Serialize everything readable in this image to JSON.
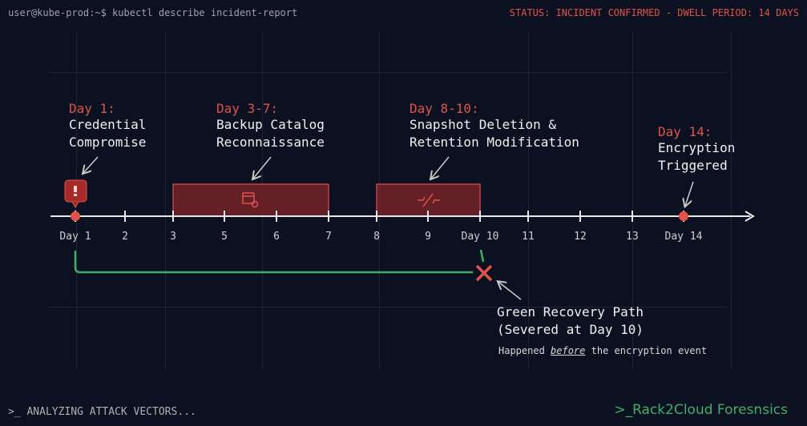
{
  "header": {
    "command": "user@kube-prod:~$ kubectl describe incident-report",
    "status": "STATUS: INCIDENT CONFIRMED - DWELL PERIOD: 14 DAYS"
  },
  "events": [
    {
      "day": "Day 1:",
      "text1": "Credential",
      "text2": "Compromise"
    },
    {
      "day": "Day 3-7:",
      "text1": "Backup Catalog",
      "text2": "Reconnaissance"
    },
    {
      "day": "Day 8-10:",
      "text1": "Snapshot Deletion &",
      "text2": "Retention Modification"
    },
    {
      "day": "Day 14:",
      "text1": "Encryption",
      "text2": "Triggered"
    }
  ],
  "ticks": [
    "Day 1",
    "2",
    "3",
    "5",
    "6",
    "7",
    "8",
    "9",
    "Day 10",
    "11",
    "12",
    "13",
    "Day 14"
  ],
  "recovery": {
    "title1": "Green Recovery Path",
    "title2": "(Severed at Day 10)",
    "note_pre": "Happened ",
    "note_em": "before",
    "note_post": " the encryption event"
  },
  "footer": {
    "left": ">_ ANALYZING ATTACK VECTORS...",
    "right": ">_Rack2Cloud Foresnsics"
  },
  "colors": {
    "accent": "#e0524a",
    "recovery": "#3fae6a",
    "background": "#0b1120"
  }
}
